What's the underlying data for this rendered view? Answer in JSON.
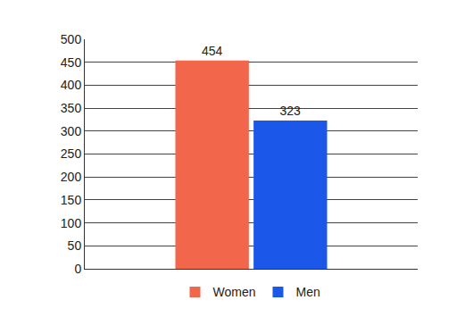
{
  "chart_data": {
    "type": "bar",
    "categories": [
      null
    ],
    "series": [
      {
        "name": "Women",
        "color": "#f2664c",
        "values": [
          454
        ]
      },
      {
        "name": "Men",
        "color": "#1b57e8",
        "values": [
          323
        ]
      }
    ],
    "ylim": [
      0,
      500
    ],
    "yticks": [
      0,
      50,
      100,
      150,
      200,
      250,
      300,
      350,
      400,
      450,
      500
    ],
    "grid": true,
    "legend": "bottom",
    "data_labels": true
  }
}
